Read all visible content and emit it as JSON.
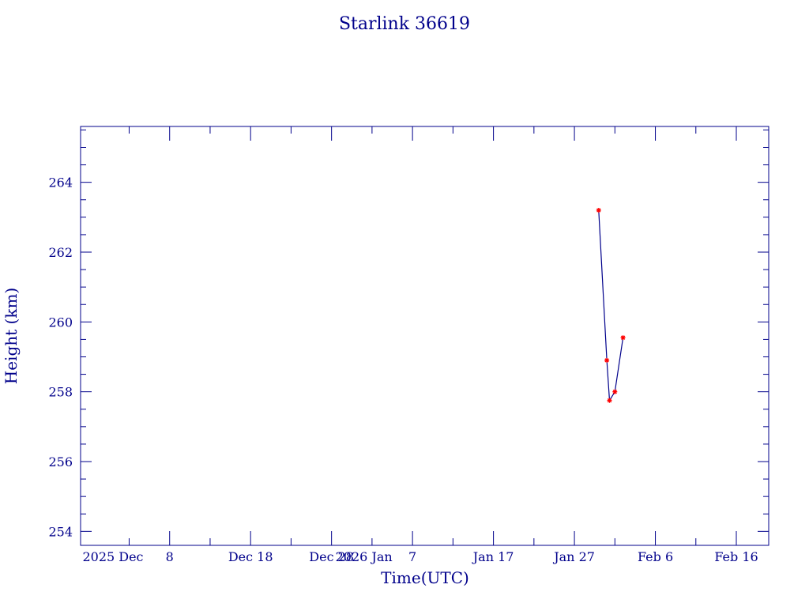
{
  "chart_data": {
    "type": "line",
    "title": "Starlink 36619",
    "xlabel": "Time(UTC)",
    "ylabel": "Height (km)",
    "xlim": [
      "2025-11-27",
      "2026-02-20"
    ],
    "ylim": [
      253.6,
      265.6
    ],
    "x_ticks": [
      {
        "date": "2025-12-01",
        "label": "2025 Dec"
      },
      {
        "date": "2025-12-08",
        "label": "8"
      },
      {
        "date": "2025-12-18",
        "label": "Dec 18"
      },
      {
        "date": "2025-12-28",
        "label": "Dec 28"
      },
      {
        "date": "2026-01-01",
        "label": "2026 Jan"
      },
      {
        "date": "2026-01-07",
        "label": "7"
      },
      {
        "date": "2026-01-17",
        "label": "Jan 17"
      },
      {
        "date": "2026-01-27",
        "label": "Jan 27"
      },
      {
        "date": "2026-02-06",
        "label": "Feb 6"
      },
      {
        "date": "2026-02-16",
        "label": "Feb 16"
      }
    ],
    "y_ticks": [
      254,
      256,
      258,
      260,
      262,
      264
    ],
    "series": [
      {
        "x": [
          "2026-01-30T00:00",
          "2026-01-31T00:00",
          "2026-01-31T08:00",
          "2026-02-01T00:00",
          "2026-02-02T00:00"
        ],
        "y": [
          263.2,
          258.9,
          257.75,
          258.0,
          259.55
        ],
        "line_color": "#00008b",
        "marker_color": "#ff0000"
      }
    ],
    "grid": false
  }
}
